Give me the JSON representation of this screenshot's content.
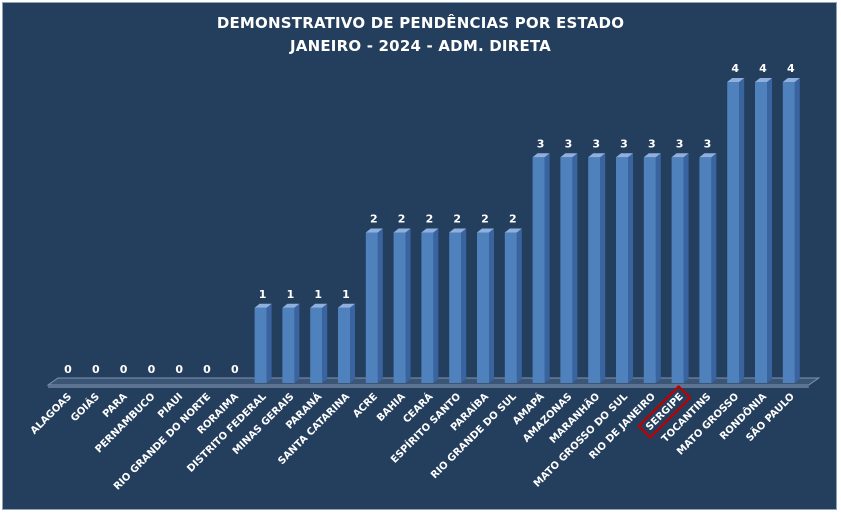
{
  "chart_data": {
    "type": "bar",
    "title": "DEMONSTRATIVO DE PENDÊNCIAS POR ESTADO",
    "subtitle": "JANEIRO - 2024 - ADM. DIRETA",
    "xlabel": "",
    "ylabel": "",
    "ylim": [
      0,
      4
    ],
    "grid": false,
    "legend": "none",
    "categories": [
      "ALAGOAS",
      "GOIÁS",
      "PARA",
      "PERNAMBUCO",
      "PIAUI",
      "RIO GRANDE DO NORTE",
      "RORAIMA",
      "DISTRITO FEDERAL",
      "MINAS GERAIS",
      "PARANÁ",
      "SANTA CATARINA",
      "ACRE",
      "BAHIA",
      "CEARÁ",
      "ESPÍRITO SANTO",
      "PARAÍBA",
      "RIO GRANDE DO SUL",
      "AMAPÁ",
      "AMAZONAS",
      "MARANHÃO",
      "MATO GROSSO DO SUL",
      "RIO DE JANEIRO",
      "SERGIPE",
      "TOCANTINS",
      "MATO GROSSO",
      "RONDÔNIA",
      "SÃO PAULO"
    ],
    "values": [
      0,
      0,
      0,
      0,
      0,
      0,
      0,
      1,
      1,
      1,
      1,
      2,
      2,
      2,
      2,
      2,
      2,
      3,
      3,
      3,
      3,
      3,
      3,
      3,
      4,
      4,
      4
    ],
    "highlight": "SERGIPE",
    "colors": {
      "background": "#243e5d",
      "bar_front": "#4f81bd",
      "bar_side": "#3a64a0",
      "bar_top": "#8fb0de",
      "highlight_box": "#c00000"
    }
  }
}
